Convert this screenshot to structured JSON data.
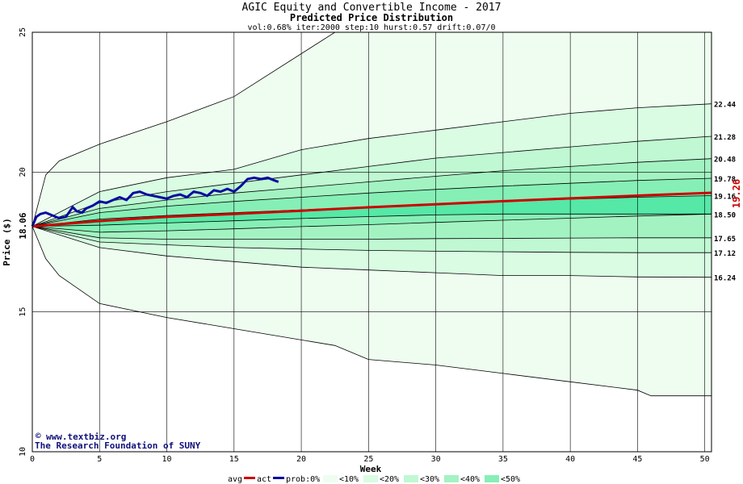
{
  "chart_data": {
    "type": "area",
    "title": "AGIC Equity and Convertible Income  - 2017",
    "subtitle": "Predicted Price Distribution",
    "params": "vol:0.68% iter:2000 step:10 hurst:0.57 drift:0.07/0",
    "xlabel": "Week",
    "ylabel": "Price ($)",
    "xlim": [
      0,
      50.5
    ],
    "ylim": [
      10,
      25
    ],
    "x_ticks": [
      0,
      5,
      10,
      15,
      20,
      25,
      30,
      35,
      40,
      45,
      50
    ],
    "y_ticks": [
      10,
      15,
      20,
      25
    ],
    "grid": true,
    "start_price_label": "18.06",
    "start_price": 18.06,
    "current_price_label": "19.26",
    "current_price": 19.26,
    "right_labels": [
      "22.44",
      "21.28",
      "20.48",
      "19.78",
      "19.16",
      "18.50",
      "17.65",
      "17.12",
      "16.24"
    ],
    "bands": [
      {
        "name": "prob:0%",
        "x": [
          0,
          1,
          2,
          5,
          10,
          15,
          22.5,
          25,
          30,
          35,
          40,
          45,
          46,
          50.5
        ],
        "upper": [
          18.06,
          19.9,
          20.4,
          21.0,
          21.8,
          22.7,
          25.0,
          25.0,
          25.0,
          25.0,
          25.0,
          25.0,
          25.0,
          25.0
        ],
        "lower": [
          18.06,
          16.9,
          16.3,
          15.3,
          14.8,
          14.4,
          13.8,
          13.3,
          13.1,
          12.8,
          12.5,
          12.2,
          12.0,
          12.0
        ]
      },
      {
        "name": "<10%",
        "x": [
          0,
          5,
          10,
          15,
          20,
          25,
          30,
          35,
          40,
          45,
          50.5
        ],
        "upper": [
          18.06,
          19.3,
          19.8,
          20.1,
          20.8,
          21.2,
          21.5,
          21.8,
          22.1,
          22.3,
          22.44
        ],
        "lower": [
          18.06,
          17.3,
          17.0,
          16.8,
          16.6,
          16.5,
          16.4,
          16.3,
          16.3,
          16.25,
          16.24
        ]
      },
      {
        "name": "<20%",
        "x": [
          0,
          5,
          10,
          15,
          20,
          25,
          30,
          35,
          40,
          45,
          50.5
        ],
        "upper": [
          18.06,
          18.9,
          19.3,
          19.6,
          19.9,
          20.2,
          20.5,
          20.7,
          20.9,
          21.1,
          21.28
        ],
        "lower": [
          18.06,
          17.5,
          17.4,
          17.3,
          17.25,
          17.2,
          17.17,
          17.15,
          17.13,
          17.12,
          17.12
        ]
      },
      {
        "name": "<30%",
        "x": [
          0,
          5,
          10,
          15,
          20,
          25,
          30,
          35,
          40,
          45,
          50.5
        ],
        "upper": [
          18.06,
          18.7,
          19.0,
          19.25,
          19.45,
          19.65,
          19.85,
          20.05,
          20.2,
          20.35,
          20.48
        ],
        "lower": [
          18.06,
          17.65,
          17.6,
          17.6,
          17.6,
          17.6,
          17.62,
          17.63,
          17.64,
          17.65,
          17.65
        ]
      },
      {
        "name": "<40%",
        "x": [
          0,
          5,
          10,
          15,
          20,
          25,
          30,
          35,
          40,
          45,
          50.5
        ],
        "upper": [
          18.06,
          18.55,
          18.78,
          18.95,
          19.1,
          19.25,
          19.38,
          19.5,
          19.6,
          19.7,
          19.78
        ],
        "lower": [
          18.06,
          17.85,
          17.9,
          17.97,
          18.05,
          18.12,
          18.2,
          18.28,
          18.35,
          18.43,
          18.5
        ]
      },
      {
        "name": "<50%",
        "x": [
          0,
          5,
          10,
          15,
          20,
          25,
          30,
          35,
          40,
          45,
          50.5
        ],
        "upper": [
          18.06,
          18.32,
          18.45,
          18.55,
          18.65,
          18.75,
          18.85,
          18.95,
          19.03,
          19.1,
          19.16
        ],
        "lower": [
          18.06,
          18.1,
          18.18,
          18.26,
          18.34,
          18.41,
          18.47,
          18.5,
          18.5,
          18.5,
          18.5
        ]
      }
    ],
    "series": [
      {
        "name": "avg",
        "color": "#cc0000",
        "x": [
          0,
          5,
          10,
          15,
          20,
          25,
          30,
          35,
          40,
          45,
          50.5
        ],
        "values": [
          18.06,
          18.25,
          18.4,
          18.5,
          18.62,
          18.74,
          18.85,
          18.96,
          19.06,
          19.16,
          19.26
        ]
      },
      {
        "name": "act",
        "color": "#0a0aa0",
        "x": [
          0,
          0.3,
          0.6,
          1,
          1.5,
          2,
          2.5,
          3,
          3.3,
          3.7,
          4,
          4.5,
          5,
          5.5,
          6,
          6.5,
          7,
          7.5,
          8,
          8.5,
          9,
          9.5,
          10,
          10.5,
          11,
          11.5,
          12,
          12.5,
          13,
          13.5,
          14,
          14.5,
          15,
          15.5,
          16,
          16.5,
          17,
          17.5,
          18,
          18.3
        ],
        "values": [
          18.06,
          18.4,
          18.5,
          18.55,
          18.45,
          18.35,
          18.4,
          18.75,
          18.6,
          18.55,
          18.7,
          18.8,
          18.95,
          18.9,
          19.0,
          19.1,
          19.0,
          19.25,
          19.3,
          19.2,
          19.15,
          19.1,
          19.05,
          19.15,
          19.2,
          19.1,
          19.3,
          19.25,
          19.15,
          19.35,
          19.3,
          19.4,
          19.3,
          19.5,
          19.75,
          19.8,
          19.75,
          19.8,
          19.7,
          19.65
        ]
      }
    ],
    "legend": [
      "avg",
      "act",
      "prob:0%",
      "<10%",
      "<20%",
      "<30%",
      "<40%",
      "<50%"
    ],
    "colors": {
      "band0": "#eefdf0",
      "band10": "#d9fce3",
      "band20": "#bff8d2",
      "band30": "#a3f3c2",
      "band40": "#86efb6",
      "band50": "#55e8a6",
      "avg": "#cc0000",
      "act": "#0a0aa0",
      "grid": "#000000"
    }
  },
  "credit": {
    "site": "www.textbiz.org",
    "copyright_symbol": "©",
    "org": "The Research Foundation of SUNY"
  },
  "legend_labels": {
    "avg": "avg",
    "act": "act",
    "p0": "prob:0%",
    "p10": "<10%",
    "p20": "<20%",
    "p30": "<30%",
    "p40": "<40%",
    "p50": "<50%"
  }
}
